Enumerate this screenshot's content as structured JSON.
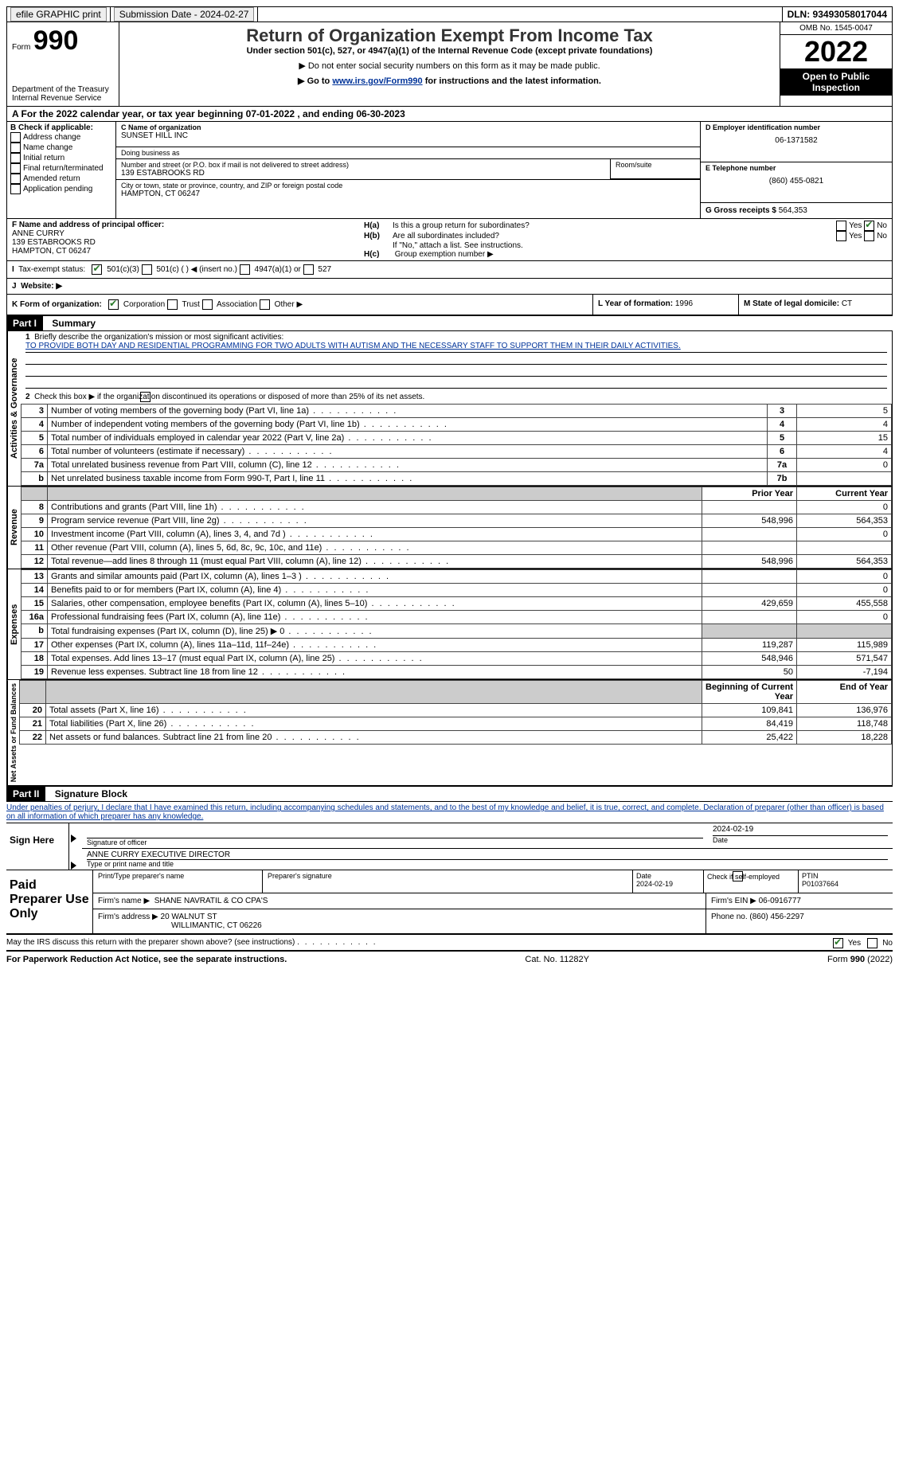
{
  "top": {
    "efile_label": "efile GRAPHIC print",
    "submission_label": "Submission Date - 2024-02-27",
    "dln_label": "DLN: 93493058017044"
  },
  "heading": {
    "form_word": "Form",
    "form_no": "990",
    "dept1": "Department of the Treasury",
    "dept2": "Internal Revenue Service",
    "title": "Return of Organization Exempt From Income Tax",
    "subtitle": "Under section 501(c), 527, or 4947(a)(1) of the Internal Revenue Code (except private foundations)",
    "note1": "▶ Do not enter social security numbers on this form as it may be made public.",
    "note2_pre": "▶ Go to ",
    "note2_link": "www.irs.gov/Form990",
    "note2_post": " for instructions and the latest information.",
    "omb": "OMB No. 1545-0047",
    "year": "2022",
    "public": "Open to Public Inspection"
  },
  "period": {
    "line": "A For the 2022 calendar year, or tax year beginning 07-01-2022    , and ending 06-30-2023"
  },
  "sectionB": {
    "label": "B Check if applicable:",
    "items": [
      "Address change",
      "Name change",
      "Initial return",
      "Final return/terminated",
      "Amended return",
      "Application pending"
    ]
  },
  "sectionC": {
    "name_label": "C Name of organization",
    "name": "SUNSET HILL INC",
    "dba_label": "Doing business as",
    "dba": "",
    "addr_label": "Number and street (or P.O. box if mail is not delivered to street address)",
    "room_label": "Room/suite",
    "addr": "139 ESTABROOKS RD",
    "city_label": "City or town, state or province, country, and ZIP or foreign postal code",
    "city": "HAMPTON, CT  06247"
  },
  "sectionD": {
    "label": "D Employer identification number",
    "value": "06-1371582"
  },
  "sectionE": {
    "label": "E Telephone number",
    "value": "(860) 455-0821"
  },
  "sectionG": {
    "label": "G Gross receipts $",
    "value": "564,353"
  },
  "sectionF": {
    "label": "F Name and address of principal officer:",
    "name": "ANNE CURRY",
    "addr1": "139 ESTABROOKS RD",
    "addr2": "HAMPTON, CT  06247"
  },
  "sectionH": {
    "a": "Is this a group return for subordinates?",
    "a_lbl": "H(a)",
    "b": "Are all subordinates included?",
    "b_lbl": "H(b)",
    "b_note": "If \"No,\" attach a list. See instructions.",
    "c_lbl": "H(c)",
    "c": "Group exemption number ▶",
    "yes": "Yes",
    "no": "No"
  },
  "sectionI": {
    "label": "I",
    "text": "Tax-exempt status:",
    "opts": [
      "501(c)(3)",
      "501(c) (  ) ◀ (insert no.)",
      "4947(a)(1) or",
      "527"
    ]
  },
  "sectionJ": {
    "label": "J",
    "text": "Website: ▶"
  },
  "sectionK": {
    "label": "K Form of organization:",
    "opts": [
      "Corporation",
      "Trust",
      "Association",
      "Other ▶"
    ]
  },
  "sectionL": {
    "label": "L Year of formation:",
    "value": "1996"
  },
  "sectionM": {
    "label": "M State of legal domicile:",
    "value": "CT"
  },
  "part1": {
    "header": "Part I",
    "title": "Summary",
    "q1": "Briefly describe the organization's mission or most significant activities:",
    "mission": "TO PROVIDE BOTH DAY AND RESIDENTIAL PROGRAMMING FOR TWO ADULTS WITH AUTISM AND THE NECESSARY STAFF TO SUPPORT THEM IN THEIR DAILY ACTIVITIES.",
    "q2": "Check this box ▶      if the organization discontinued its operations or disposed of more than 25% of its net assets.",
    "rows_ag": [
      {
        "n": "3",
        "t": "Number of voting members of the governing body (Part VI, line 1a)",
        "box": "3",
        "v": "5"
      },
      {
        "n": "4",
        "t": "Number of independent voting members of the governing body (Part VI, line 1b)",
        "box": "4",
        "v": "4"
      },
      {
        "n": "5",
        "t": "Total number of individuals employed in calendar year 2022 (Part V, line 2a)",
        "box": "5",
        "v": "15"
      },
      {
        "n": "6",
        "t": "Total number of volunteers (estimate if necessary)",
        "box": "6",
        "v": "4"
      },
      {
        "n": "7a",
        "t": "Total unrelated business revenue from Part VIII, column (C), line 12",
        "box": "7a",
        "v": "0"
      },
      {
        "n": "b",
        "t": "Net unrelated business taxable income from Form 990-T, Part I, line 11",
        "box": "7b",
        "v": ""
      }
    ],
    "col_prior": "Prior Year",
    "col_current": "Current Year",
    "rows_rev": [
      {
        "n": "8",
        "t": "Contributions and grants (Part VIII, line 1h)",
        "p": "",
        "c": "0"
      },
      {
        "n": "9",
        "t": "Program service revenue (Part VIII, line 2g)",
        "p": "548,996",
        "c": "564,353"
      },
      {
        "n": "10",
        "t": "Investment income (Part VIII, column (A), lines 3, 4, and 7d )",
        "p": "",
        "c": "0"
      },
      {
        "n": "11",
        "t": "Other revenue (Part VIII, column (A), lines 5, 6d, 8c, 9c, 10c, and 11e)",
        "p": "",
        "c": ""
      },
      {
        "n": "12",
        "t": "Total revenue—add lines 8 through 11 (must equal Part VIII, column (A), line 12)",
        "p": "548,996",
        "c": "564,353"
      }
    ],
    "rows_exp": [
      {
        "n": "13",
        "t": "Grants and similar amounts paid (Part IX, column (A), lines 1–3 )",
        "p": "",
        "c": "0"
      },
      {
        "n": "14",
        "t": "Benefits paid to or for members (Part IX, column (A), line 4)",
        "p": "",
        "c": "0"
      },
      {
        "n": "15",
        "t": "Salaries, other compensation, employee benefits (Part IX, column (A), lines 5–10)",
        "p": "429,659",
        "c": "455,558"
      },
      {
        "n": "16a",
        "t": "Professional fundraising fees (Part IX, column (A), line 11e)",
        "p": "",
        "c": "0"
      },
      {
        "n": "b",
        "t": "Total fundraising expenses (Part IX, column (D), line 25) ▶ 0",
        "p": "SHADE",
        "c": "SHADE"
      },
      {
        "n": "17",
        "t": "Other expenses (Part IX, column (A), lines 11a–11d, 11f–24e)",
        "p": "119,287",
        "c": "115,989"
      },
      {
        "n": "18",
        "t": "Total expenses. Add lines 13–17 (must equal Part IX, column (A), line 25)",
        "p": "548,946",
        "c": "571,547"
      },
      {
        "n": "19",
        "t": "Revenue less expenses. Subtract line 18 from line 12",
        "p": "50",
        "c": "-7,194"
      }
    ],
    "col_begin": "Beginning of Current Year",
    "col_end": "End of Year",
    "rows_net": [
      {
        "n": "20",
        "t": "Total assets (Part X, line 16)",
        "p": "109,841",
        "c": "136,976"
      },
      {
        "n": "21",
        "t": "Total liabilities (Part X, line 26)",
        "p": "84,419",
        "c": "118,748"
      },
      {
        "n": "22",
        "t": "Net assets or fund balances. Subtract line 21 from line 20",
        "p": "25,422",
        "c": "18,228"
      }
    ],
    "vlabels": {
      "ag": "Activities & Governance",
      "rev": "Revenue",
      "exp": "Expenses",
      "net": "Net Assets or Fund Balances"
    }
  },
  "part2": {
    "header": "Part II",
    "title": "Signature Block",
    "perjury": "Under penalties of perjury, I declare that I have examined this return, including accompanying schedules and statements, and to the best of my knowledge and belief, it is true, correct, and complete. Declaration of preparer (other than officer) is based on all information of which preparer has any knowledge.",
    "sign_here": "Sign Here",
    "sig_officer": "Signature of officer",
    "sig_date": "2024-02-19",
    "date_lbl": "Date",
    "officer_name": "ANNE CURRY  EXECUTIVE DIRECTOR",
    "officer_lbl": "Type or print name and title",
    "paid": "Paid Preparer Use Only",
    "prep_name_lbl": "Print/Type preparer's name",
    "prep_sig_lbl": "Preparer's signature",
    "prep_date_lbl": "Date",
    "prep_date": "2024-02-19",
    "check_self": "Check       if self-employed",
    "ptin_lbl": "PTIN",
    "ptin": "P01037664",
    "firm_name_lbl": "Firm's name    ▶",
    "firm_name": "SHANE NAVRATIL & CO CPA'S",
    "firm_ein_lbl": "Firm's EIN ▶",
    "firm_ein": "06-0916777",
    "firm_addr_lbl": "Firm's address ▶",
    "firm_addr1": "20 WALNUT ST",
    "firm_addr2": "WILLIMANTIC, CT  06226",
    "phone_lbl": "Phone no.",
    "phone": "(860) 456-2297",
    "discuss": "May the IRS discuss this return with the preparer shown above? (see instructions)",
    "yes": "Yes",
    "no": "No"
  },
  "footer": {
    "left": "For Paperwork Reduction Act Notice, see the separate instructions.",
    "mid": "Cat. No. 11282Y",
    "right_pre": "Form ",
    "right_form": "990",
    "right_post": " (2022)"
  }
}
